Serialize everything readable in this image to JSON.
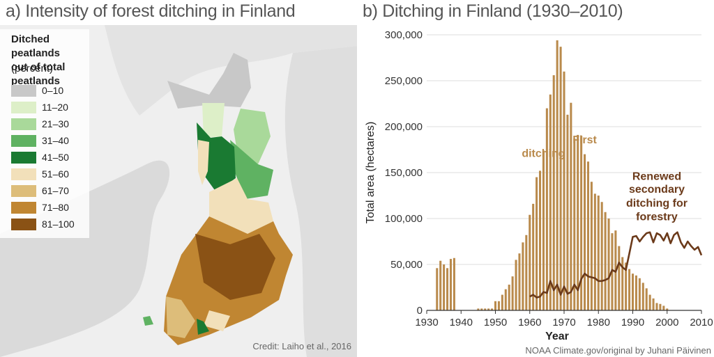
{
  "map_panel": {
    "title": "a) Intensity of forest ditching in Finland",
    "legend": {
      "title_line1": "Ditched peatlands",
      "title_line2": "out of total peatlands",
      "subtitle": "(percent)",
      "items": [
        {
          "label": "0–10",
          "color": "#c8c8c8"
        },
        {
          "label": "11–20",
          "color": "#ddefc8"
        },
        {
          "label": "21–30",
          "color": "#a9d99a"
        },
        {
          "label": "31–40",
          "color": "#5fb262"
        },
        {
          "label": "41–50",
          "color": "#1a7a32"
        },
        {
          "label": "51–60",
          "color": "#f2e0ba"
        },
        {
          "label": "61–70",
          "color": "#ddbd7a"
        },
        {
          "label": "71–80",
          "color": "#c08632"
        },
        {
          "label": "81–100",
          "color": "#8a5215"
        }
      ]
    },
    "credit": "Credit: Laiho et al., 2016"
  },
  "chart_panel": {
    "title": "b) Ditching in Finland (1930–2010)",
    "source": "NOAA Climate.gov/original by Juhani Päivinen"
  },
  "chart_data": {
    "type": "bar",
    "title": "b) Ditching in Finland (1930–2010)",
    "xlabel": "Year",
    "ylabel": "Total area (hectares)",
    "xlim": [
      1930,
      2010
    ],
    "ylim": [
      0,
      300000
    ],
    "x_ticks": [
      "1930",
      "1940",
      "1950",
      "1960",
      "1970",
      "1980",
      "1990",
      "2000",
      "2010"
    ],
    "y_ticks": [
      "0",
      "50,000",
      "100,000",
      "150,000",
      "200,000",
      "250,000",
      "300,000"
    ],
    "grid": "horizontal",
    "series": [
      {
        "name": "First ditching",
        "type": "bar",
        "color": "#b98a4c",
        "x": [
          1933,
          1934,
          1935,
          1936,
          1937,
          1938,
          1939,
          1945,
          1946,
          1947,
          1948,
          1949,
          1950,
          1951,
          1952,
          1953,
          1954,
          1955,
          1956,
          1957,
          1958,
          1959,
          1960,
          1961,
          1962,
          1963,
          1964,
          1965,
          1966,
          1967,
          1968,
          1969,
          1970,
          1971,
          1972,
          1973,
          1974,
          1975,
          1976,
          1977,
          1978,
          1979,
          1980,
          1981,
          1982,
          1983,
          1984,
          1985,
          1986,
          1987,
          1988,
          1989,
          1990,
          1991,
          1992,
          1993,
          1994,
          1995,
          1996,
          1997,
          1998,
          1999,
          2000
        ],
        "values": [
          46000,
          54000,
          50000,
          46000,
          56000,
          57000,
          0,
          2000,
          2000,
          2000,
          2000,
          2000,
          10000,
          10000,
          17000,
          23000,
          28000,
          37000,
          55000,
          62000,
          74000,
          82000,
          104000,
          116000,
          145000,
          152000,
          174000,
          220000,
          235000,
          256000,
          294000,
          287000,
          260000,
          213000,
          226000,
          187000,
          191000,
          190000,
          170000,
          162000,
          140000,
          127000,
          125000,
          118000,
          107000,
          100000,
          84000,
          87000,
          70000,
          58000,
          52000,
          45000,
          40000,
          38000,
          35000,
          30000,
          24000,
          17000,
          13000,
          8000,
          7000,
          5000,
          2000
        ]
      },
      {
        "name": "Renewed secondary ditching for forestry",
        "type": "line",
        "color": "#6b3a1a",
        "x": [
          1960,
          1961,
          1962,
          1963,
          1964,
          1965,
          1966,
          1967,
          1968,
          1969,
          1970,
          1971,
          1972,
          1973,
          1974,
          1975,
          1976,
          1977,
          1978,
          1979,
          1980,
          1981,
          1982,
          1983,
          1984,
          1985,
          1986,
          1987,
          1988,
          1989,
          1990,
          1991,
          1992,
          1993,
          1994,
          1995,
          1996,
          1997,
          1998,
          1999,
          2000,
          2001,
          2002,
          2003,
          2004,
          2005,
          2006,
          2007,
          2008,
          2009,
          2010
        ],
        "values": [
          15000,
          17000,
          14000,
          15000,
          20000,
          19000,
          32000,
          22000,
          28000,
          17000,
          26000,
          18000,
          20000,
          28000,
          22000,
          34000,
          40000,
          37000,
          36000,
          35000,
          32000,
          32000,
          33000,
          35000,
          44000,
          42000,
          52000,
          47000,
          44000,
          62000,
          80000,
          81000,
          75000,
          80000,
          84000,
          85000,
          74000,
          84000,
          82000,
          76000,
          84000,
          73000,
          82000,
          85000,
          74000,
          68000,
          75000,
          70000,
          66000,
          69000,
          60000
        ]
      }
    ],
    "annotations": [
      {
        "text": "First",
        "x": 1976,
        "y": 182000
      },
      {
        "text": "ditching",
        "x": 1964,
        "y": 167000
      },
      {
        "text": "Renewed",
        "x": 1997,
        "y": 142000
      },
      {
        "text": "secondary",
        "x": 1997,
        "y": 128000
      },
      {
        "text": "ditching for",
        "x": 1997,
        "y": 113000
      },
      {
        "text": "forestry",
        "x": 1997,
        "y": 98000
      }
    ]
  }
}
